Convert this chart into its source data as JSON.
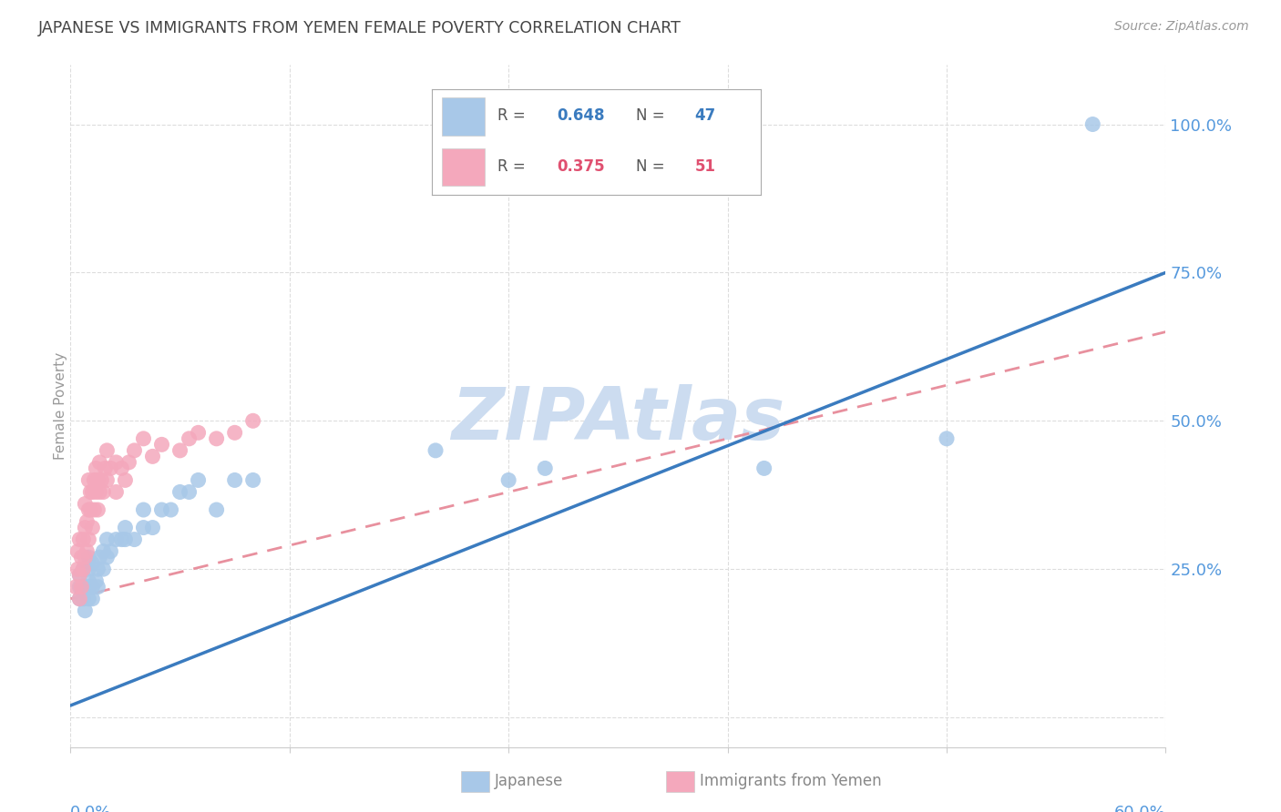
{
  "title": "JAPANESE VS IMMIGRANTS FROM YEMEN FEMALE POVERTY CORRELATION CHART",
  "source": "Source: ZipAtlas.com",
  "ylabel": "Female Poverty",
  "y_ticks": [
    0.0,
    0.25,
    0.5,
    0.75,
    1.0
  ],
  "y_tick_labels": [
    "",
    "25.0%",
    "50.0%",
    "75.0%",
    "100.0%"
  ],
  "xlim": [
    0.0,
    0.6
  ],
  "ylim": [
    -0.05,
    1.1
  ],
  "japanese_R": 0.648,
  "japanese_N": 47,
  "yemen_R": 0.375,
  "yemen_N": 51,
  "japanese_color": "#a8c8e8",
  "yemen_color": "#f4a8bc",
  "japanese_line_color": "#3a7bbf",
  "yemen_line_color": "#e8909e",
  "watermark": "ZIPAtlas",
  "watermark_color": "#ccdcf0",
  "title_color": "#444444",
  "axis_label_color": "#5599dd",
  "grid_color": "#dddddd",
  "legend_label_color": "#555555",
  "japanese_x": [
    0.005,
    0.005,
    0.005,
    0.007,
    0.007,
    0.007,
    0.008,
    0.008,
    0.01,
    0.01,
    0.01,
    0.01,
    0.01,
    0.012,
    0.012,
    0.012,
    0.014,
    0.015,
    0.015,
    0.016,
    0.018,
    0.018,
    0.02,
    0.02,
    0.022,
    0.025,
    0.028,
    0.03,
    0.03,
    0.035,
    0.04,
    0.04,
    0.045,
    0.05,
    0.055,
    0.06,
    0.065,
    0.07,
    0.08,
    0.09,
    0.1,
    0.2,
    0.24,
    0.26,
    0.38,
    0.48,
    0.56
  ],
  "japanese_y": [
    0.2,
    0.22,
    0.24,
    0.2,
    0.22,
    0.25,
    0.18,
    0.22,
    0.2,
    0.22,
    0.23,
    0.25,
    0.27,
    0.2,
    0.22,
    0.26,
    0.23,
    0.22,
    0.25,
    0.27,
    0.25,
    0.28,
    0.27,
    0.3,
    0.28,
    0.3,
    0.3,
    0.3,
    0.32,
    0.3,
    0.32,
    0.35,
    0.32,
    0.35,
    0.35,
    0.38,
    0.38,
    0.4,
    0.35,
    0.4,
    0.4,
    0.45,
    0.4,
    0.42,
    0.42,
    0.47,
    1.0
  ],
  "yemen_x": [
    0.003,
    0.004,
    0.004,
    0.005,
    0.005,
    0.005,
    0.006,
    0.006,
    0.007,
    0.007,
    0.008,
    0.008,
    0.008,
    0.009,
    0.009,
    0.01,
    0.01,
    0.01,
    0.011,
    0.011,
    0.012,
    0.012,
    0.013,
    0.013,
    0.014,
    0.014,
    0.015,
    0.015,
    0.016,
    0.016,
    0.017,
    0.018,
    0.019,
    0.02,
    0.02,
    0.022,
    0.025,
    0.025,
    0.028,
    0.03,
    0.032,
    0.035,
    0.04,
    0.045,
    0.05,
    0.06,
    0.065,
    0.07,
    0.08,
    0.09,
    0.1
  ],
  "yemen_y": [
    0.22,
    0.25,
    0.28,
    0.2,
    0.24,
    0.3,
    0.22,
    0.27,
    0.25,
    0.3,
    0.27,
    0.32,
    0.36,
    0.28,
    0.33,
    0.3,
    0.35,
    0.4,
    0.35,
    0.38,
    0.32,
    0.38,
    0.35,
    0.4,
    0.38,
    0.42,
    0.35,
    0.4,
    0.38,
    0.43,
    0.4,
    0.38,
    0.42,
    0.4,
    0.45,
    0.42,
    0.38,
    0.43,
    0.42,
    0.4,
    0.43,
    0.45,
    0.47,
    0.44,
    0.46,
    0.45,
    0.47,
    0.48,
    0.47,
    0.48,
    0.5
  ],
  "blue_line_x0": 0.0,
  "blue_line_y0": 0.02,
  "blue_line_x1": 0.6,
  "blue_line_y1": 0.75,
  "pink_line_x0": 0.0,
  "pink_line_y0": 0.2,
  "pink_line_x1": 0.6,
  "pink_line_y1": 0.65
}
